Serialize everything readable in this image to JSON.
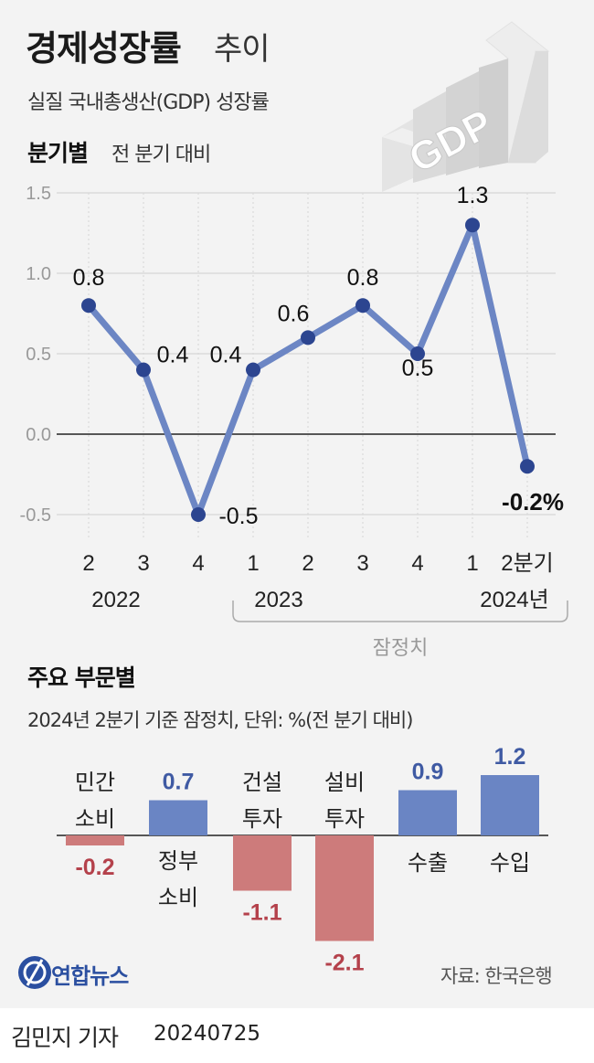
{
  "header": {
    "title_main": "경제성장률",
    "title_sub": "추이",
    "subtitle": "실질 국내총생산(GDP) 성장률",
    "gdp_graphic_text": "GDP"
  },
  "quarterly": {
    "label": "분기별",
    "note": "전 분기 대비",
    "provisional_label": "잠정치"
  },
  "chart_data": [
    {
      "type": "line",
      "categories": [
        "2",
        "3",
        "4",
        "1",
        "2",
        "3",
        "4",
        "1",
        "2분기"
      ],
      "year_labels": [
        "2022",
        "2023",
        "2024년"
      ],
      "values": [
        0.8,
        0.4,
        -0.5,
        0.4,
        0.6,
        0.8,
        0.5,
        1.3,
        -0.2
      ],
      "value_labels": [
        "0.8",
        "0.4",
        "-0.5",
        "0.4",
        "0.6",
        "0.8",
        "0.5",
        "1.3",
        "-0.2%"
      ],
      "yticks": [
        "1.5",
        "1.0",
        "0.5",
        "0.0",
        "-0.5"
      ],
      "ylim": [
        -0.5,
        1.5
      ],
      "grid": true,
      "line_color": "#6c86c4",
      "point_color": "#2c4590"
    },
    {
      "type": "bar",
      "title": "주요 부문별",
      "note": "2024년 2분기 기준 잠정치, 단위: %(전 분기 대비)",
      "categories": [
        [
          "민간",
          "소비"
        ],
        [
          "정부",
          "소비"
        ],
        [
          "건설",
          "투자"
        ],
        [
          "설비",
          "투자"
        ],
        [
          "수출"
        ],
        [
          "수입"
        ]
      ],
      "values": [
        -0.2,
        0.7,
        -1.1,
        -2.1,
        0.9,
        1.2
      ],
      "value_labels": [
        "-0.2",
        "0.7",
        "-1.1",
        "-2.1",
        "0.9",
        "1.2"
      ],
      "positive_color": "#6a85c4",
      "negative_color": "#cd7b7b",
      "positive_text_color": "#3f5aa3",
      "negative_text_color": "#b4414b"
    }
  ],
  "footer": {
    "logo_text": "연합뉴스",
    "source": "자료: 한국은행",
    "byline": "김민지 기자",
    "date": "20240725"
  }
}
